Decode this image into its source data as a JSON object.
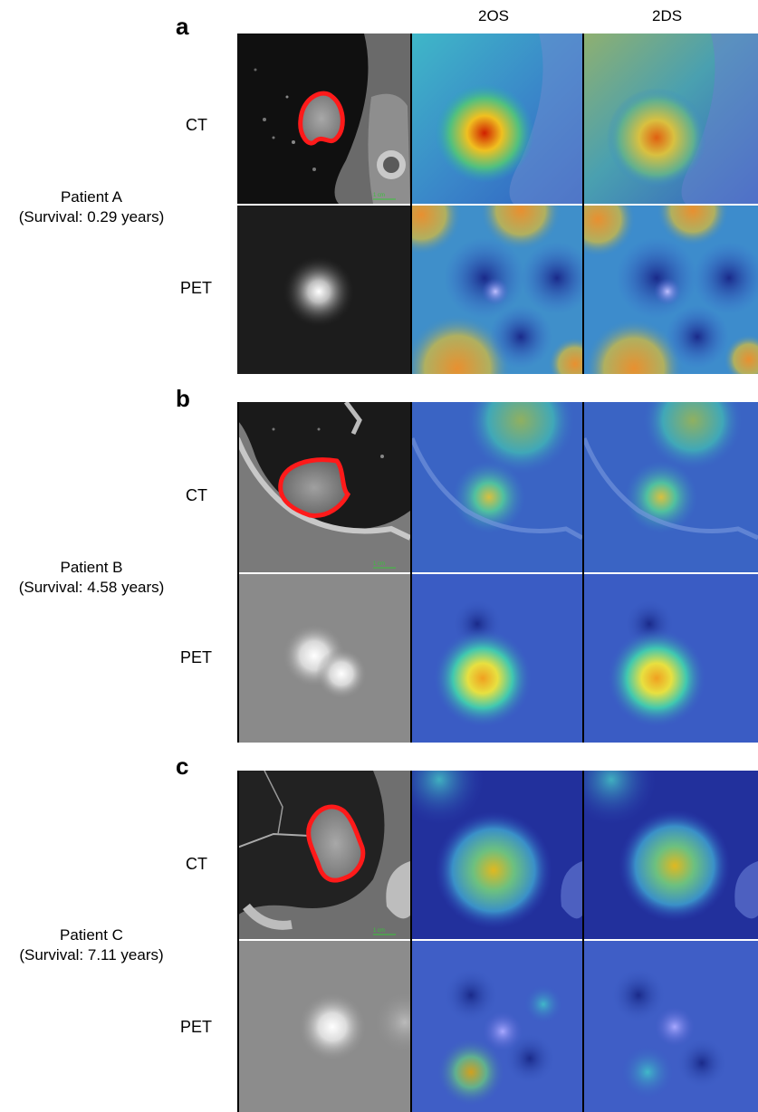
{
  "columns": [
    "2OS",
    "2DS"
  ],
  "panels": [
    {
      "letter": "a",
      "patient": "Patient A",
      "survival": "(Survival:  0.29 years)",
      "ct": "CT",
      "pet": "PET",
      "scale": "1 cm"
    },
    {
      "letter": "b",
      "patient": "Patient B",
      "survival": "(Survival:  4.58 years)",
      "ct": "CT",
      "pet": "PET",
      "scale": "1 cm"
    },
    {
      "letter": "c",
      "patient": "Patient C",
      "survival": "(Survival:  7.11 years)",
      "ct": "CT",
      "pet": "PET",
      "scale": "1 cm"
    }
  ],
  "colors": {
    "contour": "#ff1a1a",
    "scale_bar": "#39c43a",
    "background": "#ffffff"
  }
}
